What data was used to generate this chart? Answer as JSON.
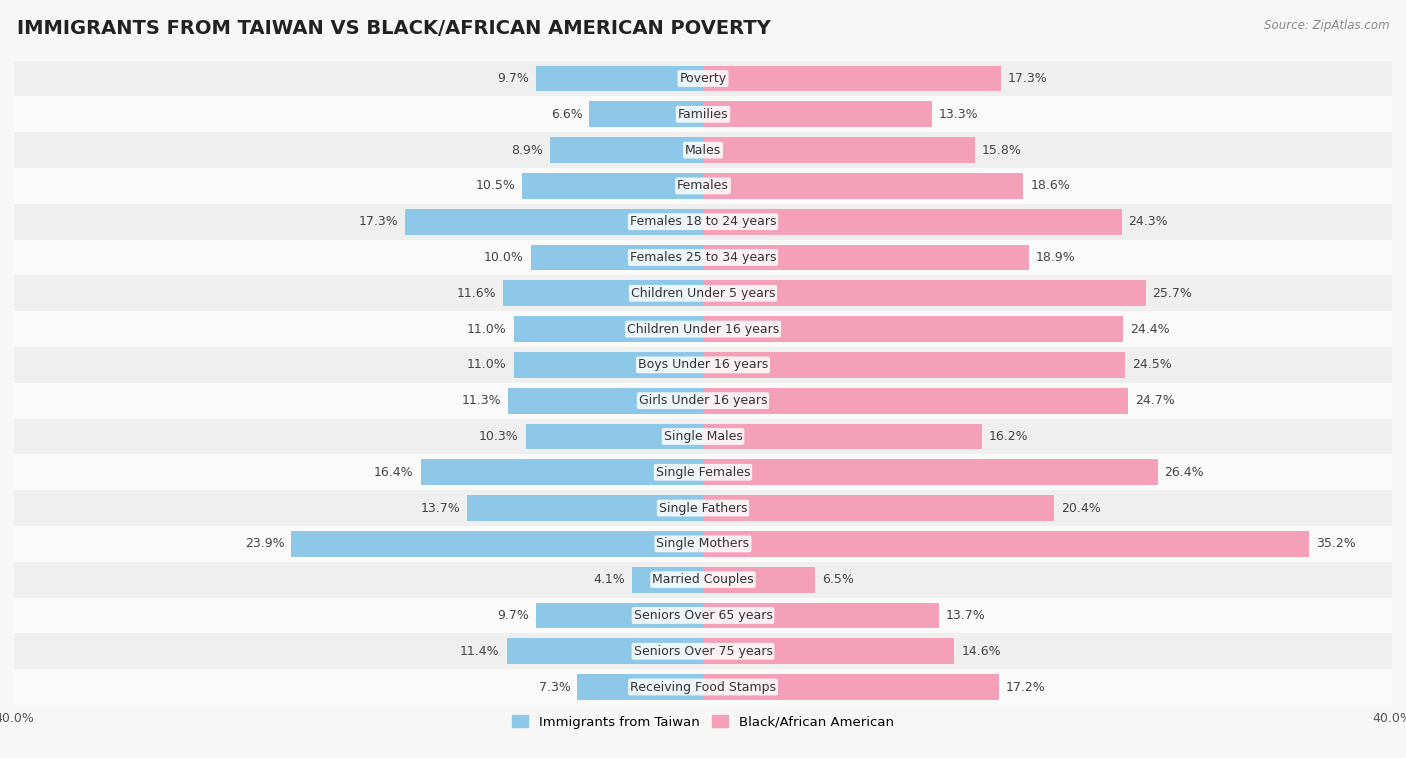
{
  "title": "IMMIGRANTS FROM TAIWAN VS BLACK/AFRICAN AMERICAN POVERTY",
  "source": "Source: ZipAtlas.com",
  "categories": [
    "Poverty",
    "Families",
    "Males",
    "Females",
    "Females 18 to 24 years",
    "Females 25 to 34 years",
    "Children Under 5 years",
    "Children Under 16 years",
    "Boys Under 16 years",
    "Girls Under 16 years",
    "Single Males",
    "Single Females",
    "Single Fathers",
    "Single Mothers",
    "Married Couples",
    "Seniors Over 65 years",
    "Seniors Over 75 years",
    "Receiving Food Stamps"
  ],
  "taiwan_values": [
    9.7,
    6.6,
    8.9,
    10.5,
    17.3,
    10.0,
    11.6,
    11.0,
    11.0,
    11.3,
    10.3,
    16.4,
    13.7,
    23.9,
    4.1,
    9.7,
    11.4,
    7.3
  ],
  "black_values": [
    17.3,
    13.3,
    15.8,
    18.6,
    24.3,
    18.9,
    25.7,
    24.4,
    24.5,
    24.7,
    16.2,
    26.4,
    20.4,
    35.2,
    6.5,
    13.7,
    14.6,
    17.2
  ],
  "taiwan_color": "#8ec8e8",
  "black_color": "#f4a0b8",
  "label_taiwan": "Immigrants from Taiwan",
  "label_black": "Black/African American",
  "axis_limit": 40.0,
  "bg_color": "#f7f7f7",
  "bar_row_light_color": "#efefef",
  "bar_row_white_color": "#fafafa",
  "title_fontsize": 14,
  "label_fontsize": 9,
  "value_fontsize": 9
}
